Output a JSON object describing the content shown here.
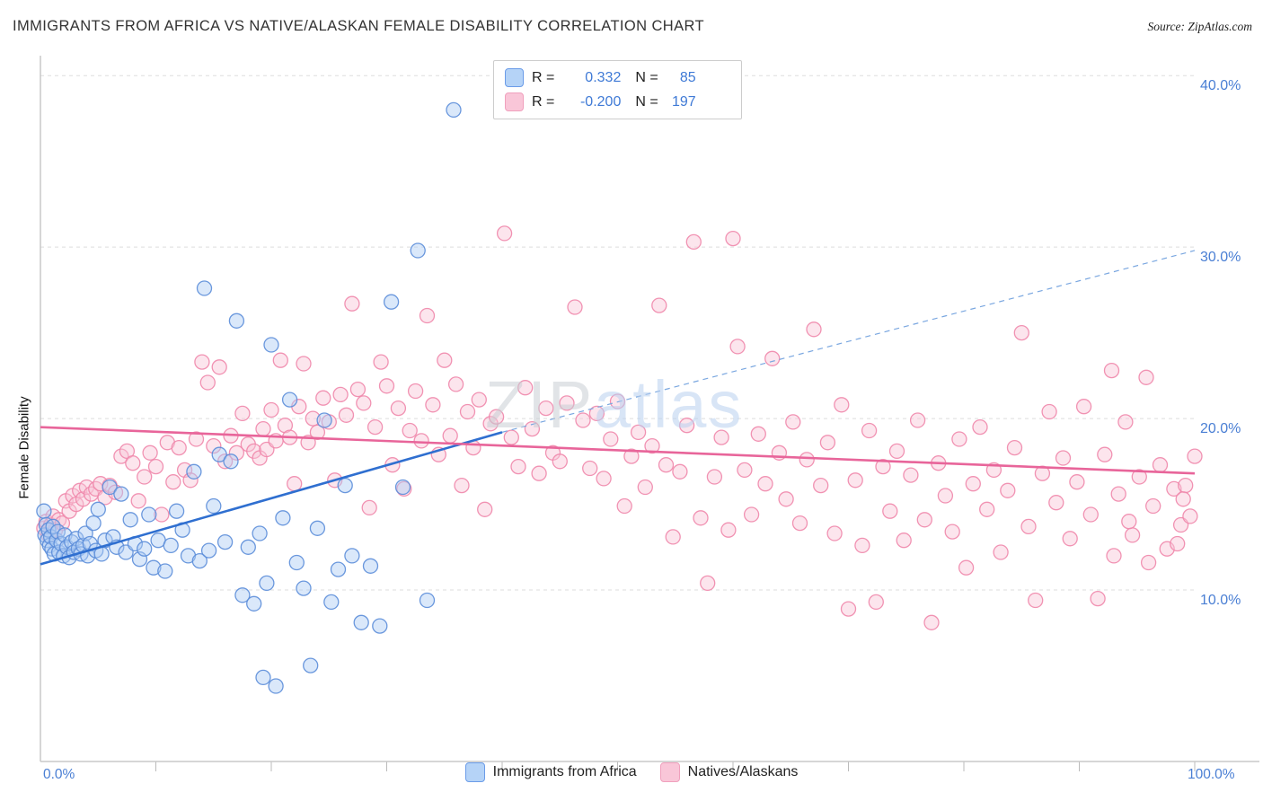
{
  "page": {
    "title": "IMMIGRANTS FROM AFRICA VS NATIVE/ALASKAN FEMALE DISABILITY CORRELATION CHART",
    "source": "Source: ZipAtlas.com"
  },
  "watermark": {
    "part1": "ZIP",
    "part2": "atlas"
  },
  "stats_legend": {
    "rows": [
      {
        "r_label": "R =",
        "r_value": "0.332",
        "n_label": "N =",
        "n_value": "85"
      },
      {
        "r_label": "R =",
        "r_value": "-0.200",
        "n_label": "N =",
        "n_value": "197"
      }
    ]
  },
  "axes": {
    "y_label": "Female Disability",
    "y_ticks": [
      "40.0%",
      "30.0%",
      "20.0%",
      "10.0%"
    ],
    "x_min_label": "0.0%",
    "x_max_label": "100.0%"
  },
  "bottom_legend": [
    {
      "label": "Immigrants from Africa"
    },
    {
      "label": "Natives/Alaskans"
    }
  ],
  "colors": {
    "blue_stroke": "#5b8dd9",
    "blue_fill": "#aecbf3",
    "blue_line": "#2f6fd0",
    "pink_stroke": "#ef87ab",
    "pink_fill": "#f9c6d8",
    "pink_line": "#e8659a",
    "grid": "#dddddd",
    "axis": "#c8c8c8",
    "accent_text": "#4a7fd4"
  },
  "chart_data": {
    "type": "scatter",
    "title": "Immigrants from Africa vs Native/Alaskan Female Disability",
    "xlabel": "Immigrants from Africa (%)",
    "ylabel": "Female Disability",
    "xlim": [
      0,
      100
    ],
    "ylim": [
      0,
      42
    ],
    "y_gridlines": [
      10,
      20,
      30,
      40
    ],
    "x_tick_step": 10,
    "legend_position": "top-center",
    "grid": true,
    "series": [
      {
        "name": "Immigrants from Africa",
        "color": "#5b8dd9",
        "fill": "#aecbf3",
        "r": 0.332,
        "n": 85,
        "points": [
          [
            0.3,
            14.6
          ],
          [
            0.4,
            13.2
          ],
          [
            0.5,
            13.8
          ],
          [
            0.6,
            12.9
          ],
          [
            0.7,
            13.5
          ],
          [
            0.8,
            12.6
          ],
          [
            0.9,
            13.1
          ],
          [
            1.0,
            12.4
          ],
          [
            1.1,
            13.7
          ],
          [
            1.2,
            12.1
          ],
          [
            1.4,
            12.9
          ],
          [
            1.5,
            13.4
          ],
          [
            1.6,
            12.2
          ],
          [
            1.8,
            12.7
          ],
          [
            2.0,
            12.0
          ],
          [
            2.1,
            13.2
          ],
          [
            2.3,
            12.5
          ],
          [
            2.5,
            11.9
          ],
          [
            2.7,
            12.8
          ],
          [
            2.9,
            12.2
          ],
          [
            3.1,
            13.0
          ],
          [
            3.3,
            12.4
          ],
          [
            3.5,
            12.1
          ],
          [
            3.7,
            12.6
          ],
          [
            3.9,
            13.3
          ],
          [
            4.1,
            12.0
          ],
          [
            4.3,
            12.7
          ],
          [
            4.6,
            13.9
          ],
          [
            4.8,
            12.3
          ],
          [
            5.0,
            14.7
          ],
          [
            5.3,
            12.1
          ],
          [
            5.6,
            12.9
          ],
          [
            6.0,
            16.0
          ],
          [
            6.3,
            13.1
          ],
          [
            6.6,
            12.5
          ],
          [
            7.0,
            15.6
          ],
          [
            7.4,
            12.2
          ],
          [
            7.8,
            14.1
          ],
          [
            8.2,
            12.7
          ],
          [
            8.6,
            11.8
          ],
          [
            9.0,
            12.4
          ],
          [
            9.4,
            14.4
          ],
          [
            9.8,
            11.3
          ],
          [
            10.2,
            12.9
          ],
          [
            10.8,
            11.1
          ],
          [
            11.3,
            12.6
          ],
          [
            11.8,
            14.6
          ],
          [
            12.3,
            13.5
          ],
          [
            12.8,
            12.0
          ],
          [
            13.3,
            16.9
          ],
          [
            13.8,
            11.7
          ],
          [
            14.2,
            27.6
          ],
          [
            14.6,
            12.3
          ],
          [
            15.0,
            14.9
          ],
          [
            15.5,
            17.9
          ],
          [
            16.0,
            12.8
          ],
          [
            16.5,
            17.5
          ],
          [
            17.0,
            25.7
          ],
          [
            17.5,
            9.7
          ],
          [
            18.0,
            12.5
          ],
          [
            18.5,
            9.2
          ],
          [
            19.0,
            13.3
          ],
          [
            19.3,
            4.9
          ],
          [
            19.6,
            10.4
          ],
          [
            20.0,
            24.3
          ],
          [
            20.4,
            4.4
          ],
          [
            21.0,
            14.2
          ],
          [
            21.6,
            21.1
          ],
          [
            22.2,
            11.6
          ],
          [
            22.8,
            10.1
          ],
          [
            23.4,
            5.6
          ],
          [
            24.0,
            13.6
          ],
          [
            24.6,
            19.9
          ],
          [
            25.2,
            9.3
          ],
          [
            25.8,
            11.2
          ],
          [
            26.4,
            16.1
          ],
          [
            27.0,
            12.0
          ],
          [
            27.8,
            8.1
          ],
          [
            28.6,
            11.4
          ],
          [
            29.4,
            7.9
          ],
          [
            30.4,
            26.8
          ],
          [
            31.4,
            16.0
          ],
          [
            32.7,
            29.8
          ],
          [
            33.5,
            9.4
          ],
          [
            35.8,
            38.0
          ]
        ]
      },
      {
        "name": "Natives/Alaskans",
        "color": "#ef87ab",
        "fill": "#f9c6d8",
        "r": -0.2,
        "n": 197,
        "points": [
          [
            0.3,
            13.6
          ],
          [
            0.5,
            14.0
          ],
          [
            0.7,
            13.2
          ],
          [
            0.9,
            13.8
          ],
          [
            1.1,
            14.3
          ],
          [
            1.3,
            13.5
          ],
          [
            1.6,
            14.1
          ],
          [
            1.9,
            13.9
          ],
          [
            2.2,
            15.2
          ],
          [
            2.5,
            14.6
          ],
          [
            2.8,
            15.5
          ],
          [
            3.1,
            15.0
          ],
          [
            3.4,
            15.8
          ],
          [
            3.7,
            15.3
          ],
          [
            4.0,
            16.0
          ],
          [
            4.4,
            15.6
          ],
          [
            4.8,
            15.9
          ],
          [
            5.2,
            16.2
          ],
          [
            5.6,
            15.4
          ],
          [
            6.0,
            16.1
          ],
          [
            6.5,
            15.7
          ],
          [
            7.0,
            17.8
          ],
          [
            7.5,
            18.1
          ],
          [
            8.0,
            17.4
          ],
          [
            8.5,
            15.2
          ],
          [
            9.0,
            16.6
          ],
          [
            9.5,
            18.0
          ],
          [
            10.0,
            17.2
          ],
          [
            10.5,
            14.4
          ],
          [
            11.0,
            18.6
          ],
          [
            11.5,
            16.3
          ],
          [
            12.0,
            18.3
          ],
          [
            12.5,
            17.0
          ],
          [
            13.0,
            16.4
          ],
          [
            13.5,
            18.8
          ],
          [
            14.0,
            23.3
          ],
          [
            14.5,
            22.1
          ],
          [
            15.0,
            18.4
          ],
          [
            15.5,
            23.0
          ],
          [
            16.0,
            17.5
          ],
          [
            16.5,
            19.0
          ],
          [
            17.0,
            18.0
          ],
          [
            17.5,
            20.3
          ],
          [
            18.0,
            18.5
          ],
          [
            18.5,
            18.1
          ],
          [
            19.0,
            17.7
          ],
          [
            19.3,
            19.4
          ],
          [
            19.6,
            18.2
          ],
          [
            20.0,
            20.5
          ],
          [
            20.4,
            18.7
          ],
          [
            20.8,
            23.4
          ],
          [
            21.2,
            19.6
          ],
          [
            21.6,
            18.9
          ],
          [
            22.0,
            16.2
          ],
          [
            22.4,
            20.7
          ],
          [
            22.8,
            23.2
          ],
          [
            23.2,
            18.6
          ],
          [
            23.6,
            20.0
          ],
          [
            24.0,
            19.2
          ],
          [
            24.5,
            21.2
          ],
          [
            25.0,
            19.8
          ],
          [
            25.5,
            16.4
          ],
          [
            26.0,
            21.4
          ],
          [
            26.5,
            20.2
          ],
          [
            27.0,
            26.7
          ],
          [
            27.5,
            21.7
          ],
          [
            28.0,
            20.9
          ],
          [
            28.5,
            14.8
          ],
          [
            29.0,
            19.5
          ],
          [
            29.5,
            23.3
          ],
          [
            30.0,
            21.9
          ],
          [
            30.5,
            17.3
          ],
          [
            31.0,
            20.6
          ],
          [
            31.5,
            15.9
          ],
          [
            32.0,
            19.3
          ],
          [
            32.5,
            21.6
          ],
          [
            33.0,
            18.7
          ],
          [
            33.5,
            26.0
          ],
          [
            34.0,
            20.8
          ],
          [
            34.5,
            17.9
          ],
          [
            35.0,
            23.4
          ],
          [
            35.5,
            19.0
          ],
          [
            36.0,
            22.0
          ],
          [
            36.5,
            16.1
          ],
          [
            37.0,
            20.4
          ],
          [
            37.5,
            18.3
          ],
          [
            38.0,
            21.1
          ],
          [
            38.5,
            14.7
          ],
          [
            39.0,
            19.7
          ],
          [
            39.5,
            20.1
          ],
          [
            40.2,
            30.8
          ],
          [
            40.8,
            18.9
          ],
          [
            41.4,
            17.2
          ],
          [
            42.0,
            21.8
          ],
          [
            42.6,
            19.4
          ],
          [
            43.2,
            16.8
          ],
          [
            43.8,
            20.6
          ],
          [
            44.4,
            18.0
          ],
          [
            45.0,
            17.5
          ],
          [
            45.6,
            20.9
          ],
          [
            46.3,
            26.5
          ],
          [
            47.0,
            19.9
          ],
          [
            47.6,
            17.1
          ],
          [
            48.2,
            20.3
          ],
          [
            48.8,
            16.5
          ],
          [
            49.4,
            18.8
          ],
          [
            50.0,
            21.0
          ],
          [
            50.6,
            14.9
          ],
          [
            51.2,
            17.8
          ],
          [
            51.8,
            19.2
          ],
          [
            52.4,
            16.0
          ],
          [
            53.0,
            18.4
          ],
          [
            53.6,
            26.6
          ],
          [
            54.2,
            17.3
          ],
          [
            54.8,
            13.1
          ],
          [
            55.4,
            16.9
          ],
          [
            56.0,
            19.6
          ],
          [
            56.6,
            30.3
          ],
          [
            57.2,
            14.2
          ],
          [
            57.8,
            10.4
          ],
          [
            58.4,
            16.6
          ],
          [
            59.0,
            18.9
          ],
          [
            59.6,
            13.5
          ],
          [
            60.0,
            30.5
          ],
          [
            60.4,
            24.2
          ],
          [
            61.0,
            17.0
          ],
          [
            61.6,
            14.4
          ],
          [
            62.2,
            19.1
          ],
          [
            62.8,
            16.2
          ],
          [
            63.4,
            23.5
          ],
          [
            64.0,
            18.0
          ],
          [
            64.6,
            15.3
          ],
          [
            65.2,
            19.8
          ],
          [
            65.8,
            13.9
          ],
          [
            66.4,
            17.6
          ],
          [
            67.0,
            25.2
          ],
          [
            67.6,
            16.1
          ],
          [
            68.2,
            18.6
          ],
          [
            68.8,
            13.3
          ],
          [
            69.4,
            20.8
          ],
          [
            70.0,
            8.9
          ],
          [
            70.6,
            16.4
          ],
          [
            71.2,
            12.6
          ],
          [
            71.8,
            19.3
          ],
          [
            72.4,
            9.3
          ],
          [
            73.0,
            17.2
          ],
          [
            73.6,
            14.6
          ],
          [
            74.2,
            18.1
          ],
          [
            74.8,
            12.9
          ],
          [
            75.4,
            16.7
          ],
          [
            76.0,
            19.9
          ],
          [
            76.6,
            14.1
          ],
          [
            77.2,
            8.1
          ],
          [
            77.8,
            17.4
          ],
          [
            78.4,
            15.5
          ],
          [
            79.0,
            13.4
          ],
          [
            79.6,
            18.8
          ],
          [
            80.2,
            11.3
          ],
          [
            80.8,
            16.2
          ],
          [
            81.4,
            19.5
          ],
          [
            82.0,
            14.7
          ],
          [
            82.6,
            17.0
          ],
          [
            83.2,
            12.2
          ],
          [
            83.8,
            15.8
          ],
          [
            84.4,
            18.3
          ],
          [
            85.0,
            25.0
          ],
          [
            85.6,
            13.7
          ],
          [
            86.2,
            9.4
          ],
          [
            86.8,
            16.8
          ],
          [
            87.4,
            20.4
          ],
          [
            88.0,
            15.1
          ],
          [
            88.6,
            17.7
          ],
          [
            89.2,
            13.0
          ],
          [
            89.8,
            16.3
          ],
          [
            90.4,
            20.7
          ],
          [
            91.0,
            14.4
          ],
          [
            91.6,
            9.5
          ],
          [
            92.2,
            17.9
          ],
          [
            92.8,
            22.8
          ],
          [
            93.4,
            15.6
          ],
          [
            94.0,
            19.8
          ],
          [
            94.6,
            13.2
          ],
          [
            95.2,
            16.6
          ],
          [
            95.8,
            22.4
          ],
          [
            96.4,
            14.9
          ],
          [
            97.0,
            17.3
          ],
          [
            97.6,
            12.4
          ],
          [
            98.2,
            15.9
          ],
          [
            98.8,
            13.8
          ],
          [
            99.2,
            16.1
          ],
          [
            99.6,
            14.3
          ],
          [
            100.0,
            17.8
          ],
          [
            93.0,
            12.0
          ],
          [
            96.0,
            11.6
          ],
          [
            98.5,
            12.7
          ],
          [
            94.3,
            14.0
          ],
          [
            99.0,
            15.3
          ]
        ]
      }
    ],
    "trend_lines": [
      {
        "series": "Immigrants from Africa",
        "style": "solid",
        "from": [
          0,
          11.5
        ],
        "to": [
          40,
          19.2
        ]
      },
      {
        "series": "Immigrants from Africa",
        "style": "dashed",
        "from": [
          40,
          19.2
        ],
        "to": [
          100,
          29.8
        ]
      },
      {
        "series": "Natives/Alaskans",
        "style": "solid",
        "from": [
          0,
          19.5
        ],
        "to": [
          100,
          16.8
        ]
      }
    ]
  }
}
